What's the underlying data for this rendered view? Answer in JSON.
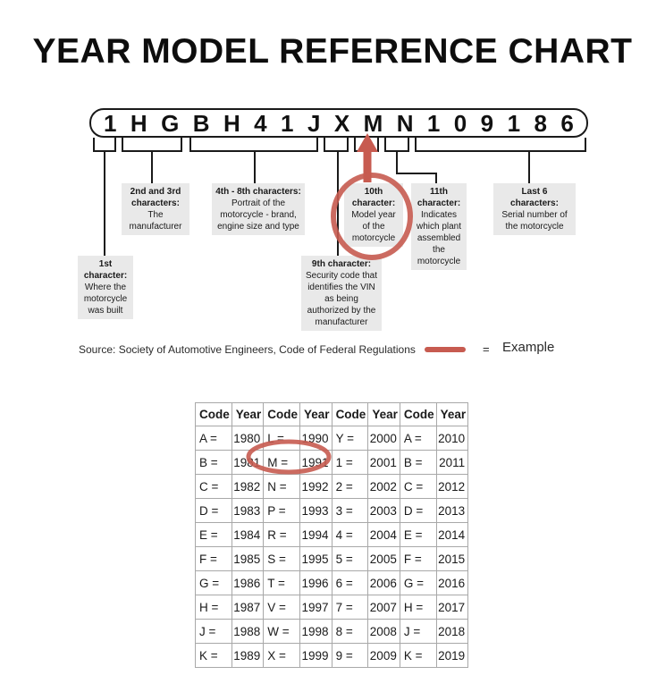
{
  "title": "YEAR MODEL REFERENCE CHART",
  "vin": {
    "characters": [
      "1",
      "H",
      "G",
      "B",
      "H",
      "4",
      "1",
      "J",
      "X",
      "M",
      "N",
      "1",
      "0",
      "9",
      "1",
      "8",
      "6"
    ]
  },
  "callouts": {
    "first": {
      "heading": "1st character:",
      "body": "Where the motorcycle was built"
    },
    "second_third": {
      "heading": "2nd and 3rd characters:",
      "body": "The manufacturer"
    },
    "fourth_eighth": {
      "heading": "4th - 8th characters:",
      "body": "Portrait of the motorcycle - brand, engine size and type"
    },
    "ninth": {
      "heading": "9th character:",
      "body": "Security code that identifies the VIN as being authorized by the manufacturer"
    },
    "tenth": {
      "heading": "10th character:",
      "body": "Model year of the motorcycle"
    },
    "eleventh": {
      "heading": "11th character:",
      "body": "Indicates which plant assembled the motorcycle"
    },
    "last_six": {
      "heading": "Last 6 characters:",
      "body": "Serial number of the motorcycle"
    }
  },
  "source_line": "Source:  Society of Automotive Engineers, Code of Federal Regulations",
  "legend": {
    "equals": "=",
    "label": "Example"
  },
  "chart_data": {
    "type": "table",
    "title": "Year model reference table",
    "headers": [
      "Code",
      "Year",
      "Code",
      "Year",
      "Code",
      "Year",
      "Code",
      "Year"
    ],
    "rows": [
      [
        "A =",
        "1980",
        "L =",
        "1990",
        "Y =",
        "2000",
        "A =",
        "2010"
      ],
      [
        "B =",
        "1981",
        "M =",
        "1991",
        "1 =",
        "2001",
        "B =",
        "2011"
      ],
      [
        "C =",
        "1982",
        "N =",
        "1992",
        "2 =",
        "2002",
        "C =",
        "2012"
      ],
      [
        "D =",
        "1983",
        "P =",
        "1993",
        "3 =",
        "2003",
        "D =",
        "2013"
      ],
      [
        "E =",
        "1984",
        "R =",
        "1994",
        "4 =",
        "2004",
        "E =",
        "2014"
      ],
      [
        "F =",
        "1985",
        "S =",
        "1995",
        "5 =",
        "2005",
        "F =",
        "2015"
      ],
      [
        "G =",
        "1986",
        "T =",
        "1996",
        "6 =",
        "2006",
        "G =",
        "2016"
      ],
      [
        "H =",
        "1987",
        "V =",
        "1997",
        "7 =",
        "2007",
        "H =",
        "2017"
      ],
      [
        "J =",
        "1988",
        "W =",
        "1998",
        "8 =",
        "2008",
        "J =",
        "2018"
      ],
      [
        "K =",
        "1989",
        "X =",
        "1999",
        "9 =",
        "2009",
        "K =",
        "2019"
      ]
    ],
    "highlighted_example": "M = 1991"
  },
  "colors": {
    "accent_red": "#c75b50",
    "callout_bg": "#e9e9e9"
  }
}
